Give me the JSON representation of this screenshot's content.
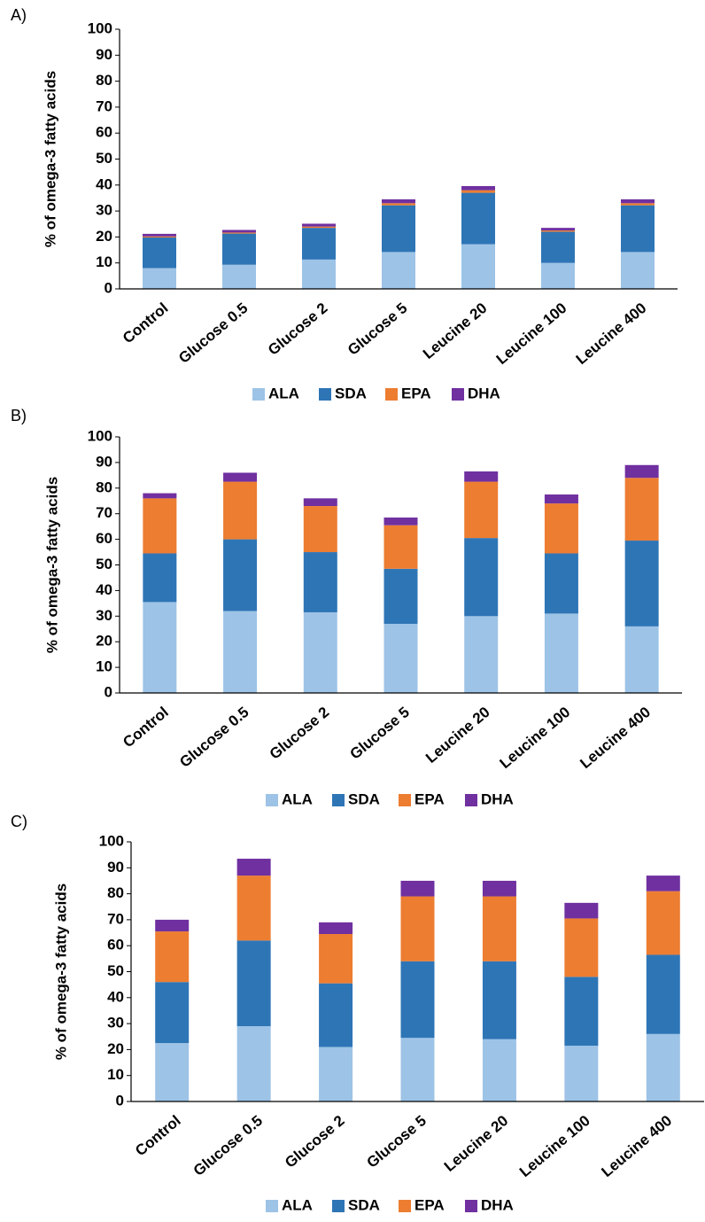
{
  "chart_data": [
    {
      "type": "stacked_bar",
      "panel_label": "A)",
      "y_label": "% of omega-3 fatty acids",
      "categories": [
        "Control",
        "Glucose 0.5",
        "Glucose 2",
        "Glucose 5",
        "Leucine 20",
        "Leucine 100",
        "Leucine 400"
      ],
      "series": [
        {
          "name": "ALA",
          "color": "#9dc3e6",
          "values": [
            8,
            9.3,
            11.3,
            14.2,
            17.2,
            10,
            14.2
          ]
        },
        {
          "name": "SDA",
          "color": "#2e75b6",
          "values": [
            11.8,
            12,
            12.2,
            18,
            19.8,
            12,
            18
          ]
        },
        {
          "name": "EPA",
          "color": "#ed7d31",
          "values": [
            0.4,
            0.4,
            0.5,
            0.8,
            1,
            0.5,
            0.8
          ]
        },
        {
          "name": "DHA",
          "color": "#7030a0",
          "values": [
            1,
            1,
            1.1,
            1.5,
            1.6,
            1,
            1.5
          ]
        }
      ],
      "ylim": [
        0,
        100
      ],
      "yticks": [
        0,
        10,
        20,
        30,
        40,
        50,
        60,
        70,
        80,
        90,
        100
      ],
      "legend": "bottom"
    },
    {
      "type": "stacked_bar",
      "panel_label": "B)",
      "y_label": "% of omega-3 fatty acids",
      "categories": [
        "Control",
        "Glucose 0.5",
        "Glucose 2",
        "Glucose 5",
        "Leucine 20",
        "Leucine 100",
        "Leucine 400"
      ],
      "series": [
        {
          "name": "ALA",
          "color": "#9dc3e6",
          "values": [
            35.5,
            32,
            31.5,
            27,
            30,
            31,
            26
          ]
        },
        {
          "name": "SDA",
          "color": "#2e75b6",
          "values": [
            19,
            28,
            23.5,
            21.5,
            30.5,
            23.5,
            33.5
          ]
        },
        {
          "name": "EPA",
          "color": "#ed7d31",
          "values": [
            21.5,
            22.5,
            18,
            17,
            22,
            19.5,
            24.5
          ]
        },
        {
          "name": "DHA",
          "color": "#7030a0",
          "values": [
            2,
            3.5,
            3,
            3,
            4,
            3.5,
            5
          ]
        }
      ],
      "ylim": [
        0,
        100
      ],
      "yticks": [
        0,
        10,
        20,
        30,
        40,
        50,
        60,
        70,
        80,
        90,
        100
      ],
      "legend": "bottom"
    },
    {
      "type": "stacked_bar",
      "panel_label": "C)",
      "y_label": "% of omega-3 fatty acids",
      "categories": [
        "Control",
        "Glucose 0.5",
        "Glucose 2",
        "Glucose 5",
        "Leucine 20",
        "Leucine 100",
        "Leucine 400"
      ],
      "series": [
        {
          "name": "ALA",
          "color": "#9dc3e6",
          "values": [
            22.5,
            29,
            21,
            24.5,
            24,
            21.5,
            26
          ]
        },
        {
          "name": "SDA",
          "color": "#2e75b6",
          "values": [
            23.5,
            33,
            24.5,
            29.5,
            30,
            26.5,
            30.5
          ]
        },
        {
          "name": "EPA",
          "color": "#ed7d31",
          "values": [
            19.5,
            25,
            19,
            25,
            25,
            22.5,
            24.5
          ]
        },
        {
          "name": "DHA",
          "color": "#7030a0",
          "values": [
            4.5,
            6.5,
            4.5,
            6,
            6,
            6,
            6
          ]
        }
      ],
      "ylim": [
        0,
        100
      ],
      "yticks": [
        0,
        10,
        20,
        30,
        40,
        50,
        60,
        70,
        80,
        90,
        100
      ],
      "legend": "bottom"
    }
  ]
}
